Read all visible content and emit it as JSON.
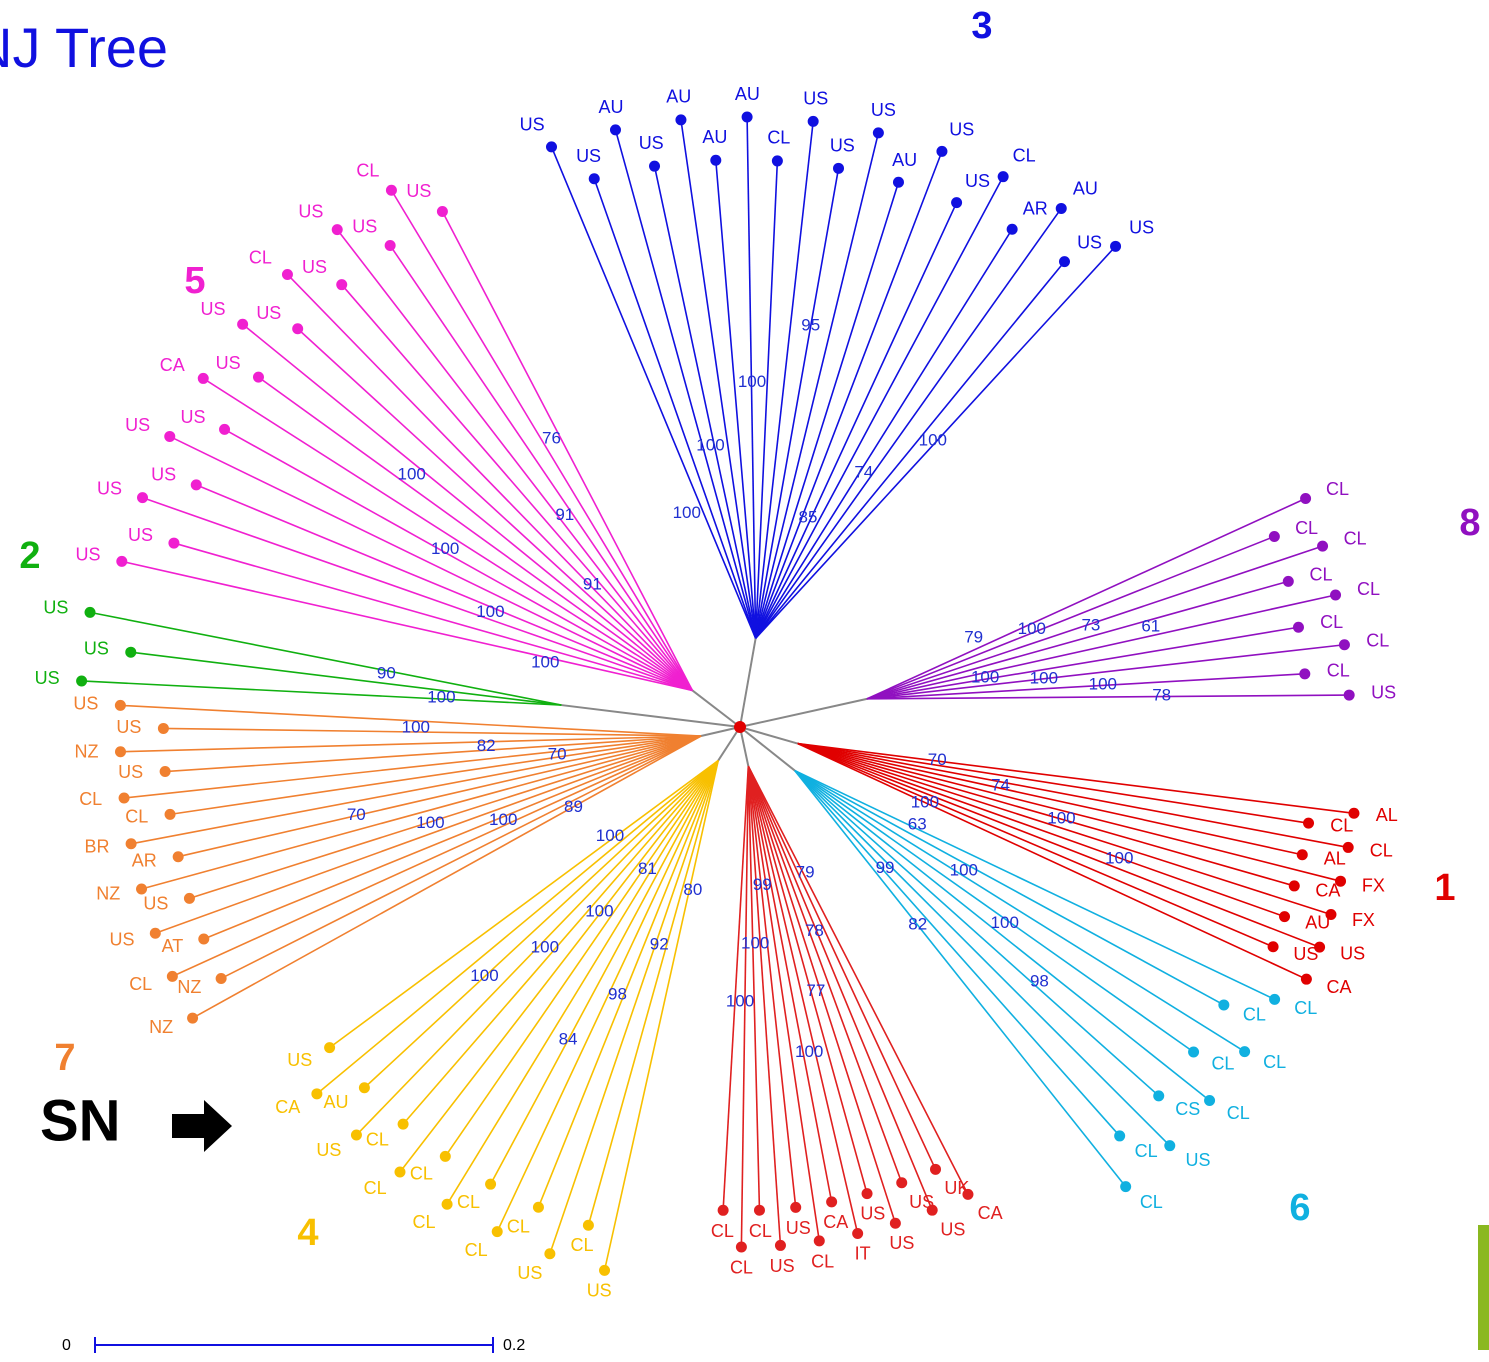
{
  "title": "NJ Tree",
  "annotation": "SN",
  "scale_bar": {
    "labels": [
      "0",
      "0.2"
    ]
  },
  "clusters": [
    {
      "label": "3",
      "color": "#1010e0",
      "leaves": [
        "US",
        "US",
        "AU",
        "US",
        "AU",
        "AU",
        "AU",
        "CL",
        "US",
        "US",
        "US",
        "AU",
        "US",
        "US",
        "CL",
        "AR",
        "AU",
        "US",
        "US"
      ],
      "bootstrap": [
        "100",
        "100",
        "100",
        "95",
        "85",
        "74",
        "100"
      ]
    },
    {
      "label": "8",
      "color": "#9010c0",
      "leaves": [
        "CL",
        "CL",
        "CL",
        "CL",
        "CL",
        "CL",
        "CL",
        "CL",
        "US"
      ],
      "bootstrap": [
        "79",
        "100",
        "73",
        "61",
        "100",
        "100",
        "100",
        "78"
      ]
    },
    {
      "label": "1",
      "color": "#e00000",
      "leaves": [
        "AL",
        "CL",
        "CL",
        "AL",
        "FX",
        "CA",
        "FX",
        "AU",
        "US",
        "US",
        "CA"
      ],
      "bootstrap": [
        "70",
        "74",
        "100",
        "100",
        "100"
      ]
    },
    {
      "label": "6",
      "color": "#10b0e0",
      "leaves": [
        "CL",
        "CL",
        "CL",
        "CL",
        "CL",
        "CS",
        "US",
        "CL",
        "CL"
      ],
      "bootstrap": [
        "63",
        "100",
        "100",
        "98",
        "99",
        "82"
      ]
    },
    {
      "color": "#e02020",
      "leaves": [
        "CA",
        "UK",
        "US",
        "US",
        "US",
        "US",
        "IT",
        "CA",
        "CL",
        "US",
        "US",
        "CL",
        "CL",
        "CL"
      ],
      "bootstrap": [
        "79",
        "78",
        "77",
        "100",
        "99",
        "100",
        "100"
      ]
    },
    {
      "label": "4",
      "color": "#f8c000",
      "leaves": [
        "US",
        "CL",
        "US",
        "CL",
        "CL",
        "CL",
        "CL",
        "CL",
        "CL",
        "CL",
        "US",
        "AU",
        "CA",
        "US"
      ],
      "bootstrap": [
        "80",
        "92",
        "98",
        "84",
        "81",
        "100",
        "100",
        "100",
        "100"
      ]
    },
    {
      "label": "7",
      "color": "#f08030",
      "leaves": [
        "NZ",
        "NZ",
        "CL",
        "AT",
        "US",
        "US",
        "NZ",
        "AR",
        "BR",
        "CL",
        "CL",
        "US",
        "NZ",
        "US",
        "US"
      ],
      "bootstrap": [
        "89",
        "100",
        "100",
        "70",
        "70",
        "82",
        "100"
      ]
    },
    {
      "label": "2",
      "color": "#10b010",
      "leaves": [
        "US",
        "US",
        "US"
      ],
      "bootstrap": [
        "100",
        "90"
      ]
    },
    {
      "label": "5",
      "color": "#f020d0",
      "leaves": [
        "US",
        "US",
        "US",
        "US",
        "US",
        "US",
        "CA",
        "US",
        "US",
        "US",
        "CL",
        "US",
        "US",
        "US",
        "CL",
        "US"
      ],
      "bootstrap": [
        "100",
        "100",
        "100",
        "100",
        "91",
        "91",
        "76"
      ]
    }
  ]
}
